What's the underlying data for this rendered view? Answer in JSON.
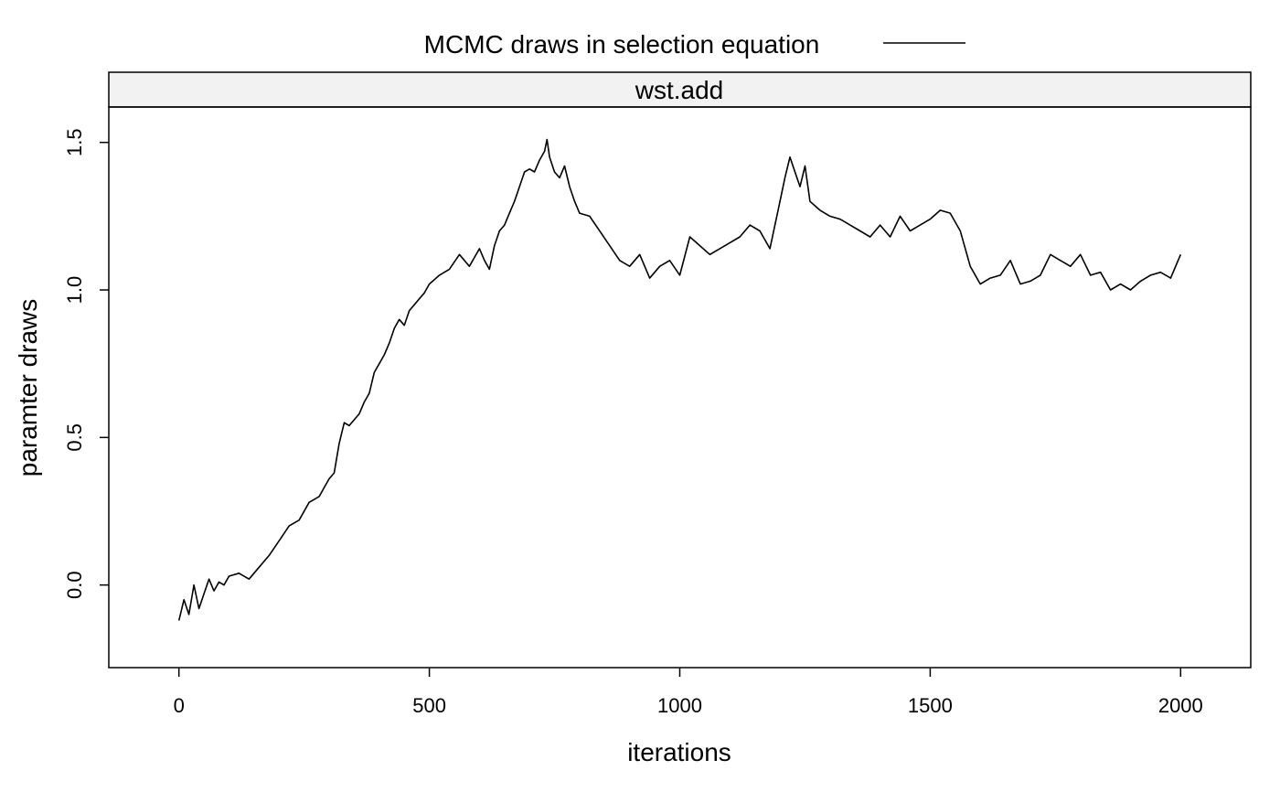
{
  "chart_data": {
    "type": "line",
    "legend": {
      "label": "MCMC draws in selection equation",
      "placement": "top"
    },
    "panel": {
      "strip_label": "wst.add"
    },
    "xlabel": "iterations",
    "ylabel": "paramter draws",
    "xlim": [
      -140,
      2140
    ],
    "ylim": [
      -0.28,
      1.62
    ],
    "xticks": [
      0,
      500,
      1000,
      1500,
      2000
    ],
    "xtick_labels": [
      "0",
      "500",
      "1000",
      "1500",
      "2000"
    ],
    "yticks": [
      0.0,
      0.5,
      1.0,
      1.5
    ],
    "ytick_labels": [
      "0.0",
      "0.5",
      "1.0",
      "1.5"
    ],
    "grid": false,
    "line_color": "#000000",
    "strip_color": "#f2f2f2",
    "series": [
      {
        "x": [
          0,
          10,
          20,
          30,
          40,
          50,
          60,
          70,
          80,
          90,
          100,
          120,
          140,
          160,
          180,
          200,
          220,
          240,
          260,
          280,
          300,
          310,
          320,
          330,
          340,
          350,
          360,
          370,
          380,
          390,
          400,
          410,
          420,
          430,
          440,
          450,
          460,
          470,
          480,
          490,
          500,
          520,
          540,
          560,
          580,
          600,
          610,
          620,
          630,
          640,
          650,
          660,
          670,
          680,
          690,
          700,
          710,
          720,
          730,
          735,
          740,
          750,
          760,
          770,
          780,
          790,
          800,
          820,
          840,
          860,
          880,
          900,
          920,
          940,
          960,
          980,
          1000,
          1020,
          1040,
          1060,
          1080,
          1100,
          1120,
          1140,
          1160,
          1180,
          1200,
          1210,
          1220,
          1230,
          1240,
          1250,
          1260,
          1280,
          1300,
          1320,
          1340,
          1360,
          1380,
          1400,
          1420,
          1440,
          1460,
          1480,
          1500,
          1520,
          1540,
          1560,
          1580,
          1600,
          1620,
          1640,
          1660,
          1680,
          1700,
          1720,
          1740,
          1760,
          1780,
          1800,
          1820,
          1840,
          1860,
          1880,
          1900,
          1920,
          1940,
          1960,
          1980,
          2000
        ],
        "y": [
          -0.12,
          -0.05,
          -0.1,
          0.0,
          -0.08,
          -0.03,
          0.02,
          -0.02,
          0.01,
          0.0,
          0.03,
          0.04,
          0.02,
          0.06,
          0.1,
          0.15,
          0.2,
          0.22,
          0.28,
          0.3,
          0.36,
          0.38,
          0.48,
          0.55,
          0.54,
          0.56,
          0.58,
          0.62,
          0.65,
          0.72,
          0.75,
          0.78,
          0.82,
          0.87,
          0.9,
          0.88,
          0.93,
          0.95,
          0.97,
          0.99,
          1.02,
          1.05,
          1.07,
          1.12,
          1.08,
          1.14,
          1.1,
          1.07,
          1.15,
          1.2,
          1.22,
          1.26,
          1.3,
          1.35,
          1.4,
          1.41,
          1.4,
          1.44,
          1.47,
          1.51,
          1.45,
          1.4,
          1.38,
          1.42,
          1.35,
          1.3,
          1.26,
          1.25,
          1.2,
          1.15,
          1.1,
          1.08,
          1.12,
          1.04,
          1.08,
          1.1,
          1.05,
          1.18,
          1.15,
          1.12,
          1.14,
          1.16,
          1.18,
          1.22,
          1.2,
          1.14,
          1.3,
          1.38,
          1.45,
          1.4,
          1.35,
          1.42,
          1.3,
          1.27,
          1.25,
          1.24,
          1.22,
          1.2,
          1.18,
          1.22,
          1.18,
          1.25,
          1.2,
          1.22,
          1.24,
          1.27,
          1.26,
          1.2,
          1.08,
          1.02,
          1.04,
          1.05,
          1.1,
          1.02,
          1.03,
          1.05,
          1.12,
          1.1,
          1.08,
          1.12,
          1.05,
          1.06,
          1.0,
          1.02,
          1.0,
          1.03,
          1.05,
          1.06,
          1.04,
          1.12
        ]
      }
    ]
  }
}
